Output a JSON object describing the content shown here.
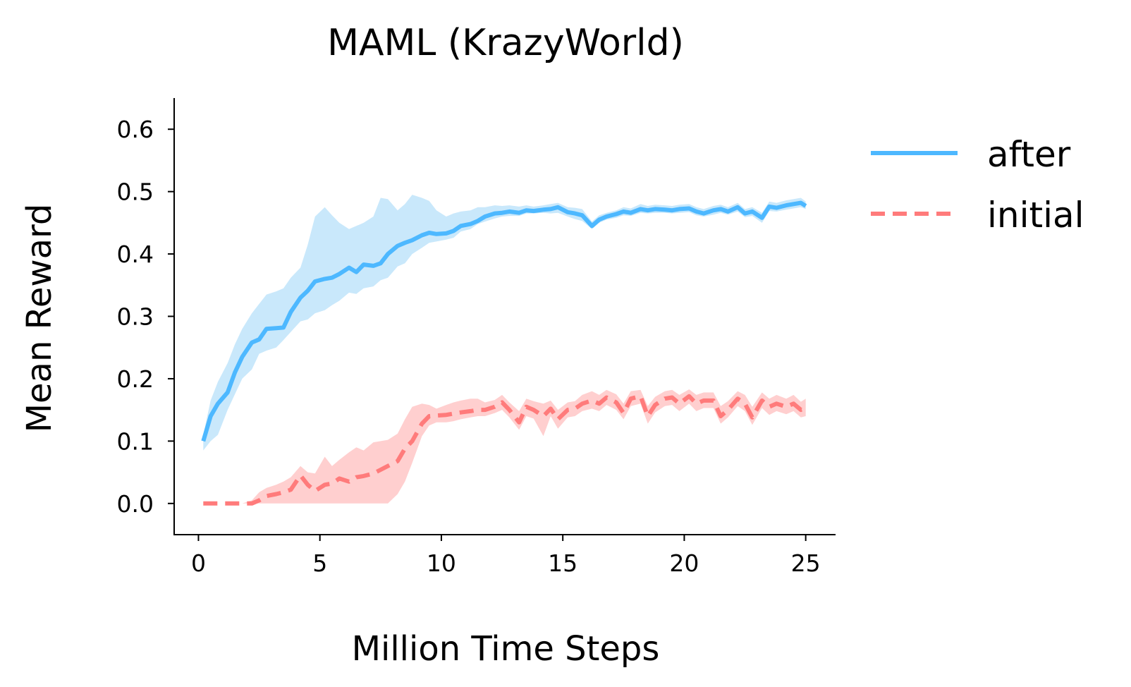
{
  "chart_data": {
    "type": "line",
    "title": "MAML (KrazyWorld)",
    "xlabel": "Million Time Steps",
    "ylabel": "Mean Reward",
    "xlim": [
      -1,
      26.2
    ],
    "ylim": [
      -0.05,
      0.65
    ],
    "xticks": [
      0,
      5,
      10,
      15,
      20,
      25
    ],
    "xtick_labels": [
      "0",
      "5",
      "10",
      "15",
      "20",
      "25"
    ],
    "yticks": [
      0.0,
      0.1,
      0.2,
      0.3,
      0.4,
      0.5,
      0.6
    ],
    "ytick_labels": [
      "0.0",
      "0.1",
      "0.2",
      "0.3",
      "0.4",
      "0.5",
      "0.6"
    ],
    "grid": false,
    "legend_position": "outside-top-right",
    "series": [
      {
        "name": "after",
        "color": "#4db8ff",
        "band_color": "#c9e8fb",
        "line_style": "solid",
        "x": [
          0.2,
          0.5,
          0.8,
          1.2,
          1.5,
          1.8,
          2.2,
          2.5,
          2.8,
          3.2,
          3.5,
          3.8,
          4.2,
          4.5,
          4.8,
          5.2,
          5.5,
          5.8,
          6.2,
          6.5,
          6.8,
          7.2,
          7.5,
          7.8,
          8.2,
          8.5,
          8.8,
          9.2,
          9.5,
          9.8,
          10.2,
          10.5,
          10.8,
          11.2,
          11.5,
          11.8,
          12.2,
          12.5,
          12.8,
          13.2,
          13.5,
          13.8,
          14.2,
          14.5,
          14.8,
          15.2,
          15.5,
          15.8,
          16.2,
          16.5,
          16.8,
          17.2,
          17.5,
          17.8,
          18.2,
          18.5,
          18.8,
          19.2,
          19.5,
          19.8,
          20.2,
          20.5,
          20.8,
          21.2,
          21.5,
          21.8,
          22.2,
          22.5,
          22.8,
          23.2,
          23.5,
          23.8,
          24.2,
          24.5,
          24.8,
          25.0
        ],
        "y": [
          0.1,
          0.14,
          0.16,
          0.178,
          0.21,
          0.235,
          0.258,
          0.263,
          0.28,
          0.281,
          0.282,
          0.307,
          0.33,
          0.341,
          0.356,
          0.36,
          0.362,
          0.368,
          0.378,
          0.371,
          0.383,
          0.381,
          0.385,
          0.4,
          0.413,
          0.418,
          0.422,
          0.43,
          0.434,
          0.432,
          0.433,
          0.437,
          0.445,
          0.448,
          0.453,
          0.46,
          0.465,
          0.466,
          0.468,
          0.466,
          0.47,
          0.469,
          0.471,
          0.472,
          0.475,
          0.467,
          0.465,
          0.462,
          0.445,
          0.455,
          0.46,
          0.464,
          0.468,
          0.466,
          0.472,
          0.47,
          0.472,
          0.471,
          0.47,
          0.472,
          0.473,
          0.468,
          0.465,
          0.47,
          0.472,
          0.468,
          0.475,
          0.465,
          0.468,
          0.458,
          0.476,
          0.474,
          0.478,
          0.48,
          0.482,
          0.477
        ],
        "lower": [
          0.085,
          0.1,
          0.11,
          0.15,
          0.175,
          0.2,
          0.215,
          0.24,
          0.245,
          0.25,
          0.262,
          0.275,
          0.292,
          0.295,
          0.305,
          0.31,
          0.318,
          0.325,
          0.338,
          0.336,
          0.345,
          0.348,
          0.358,
          0.362,
          0.38,
          0.385,
          0.4,
          0.41,
          0.418,
          0.42,
          0.423,
          0.426,
          0.436,
          0.44,
          0.448,
          0.452,
          0.457,
          0.46,
          0.461,
          0.461,
          0.465,
          0.465,
          0.466,
          0.465,
          0.466,
          0.46,
          0.456,
          0.453,
          0.44,
          0.45,
          0.455,
          0.458,
          0.462,
          0.461,
          0.466,
          0.465,
          0.466,
          0.466,
          0.465,
          0.466,
          0.467,
          0.462,
          0.46,
          0.463,
          0.466,
          0.463,
          0.468,
          0.459,
          0.461,
          0.45,
          0.469,
          0.468,
          0.471,
          0.473,
          0.475,
          0.472
        ],
        "upper": [
          0.11,
          0.165,
          0.195,
          0.225,
          0.255,
          0.28,
          0.305,
          0.32,
          0.335,
          0.34,
          0.345,
          0.362,
          0.378,
          0.415,
          0.46,
          0.475,
          0.462,
          0.45,
          0.44,
          0.445,
          0.45,
          0.46,
          0.49,
          0.488,
          0.47,
          0.48,
          0.495,
          0.49,
          0.485,
          0.47,
          0.46,
          0.465,
          0.468,
          0.47,
          0.475,
          0.475,
          0.478,
          0.477,
          0.478,
          0.476,
          0.478,
          0.476,
          0.478,
          0.48,
          0.482,
          0.475,
          0.474,
          0.472,
          0.452,
          0.462,
          0.466,
          0.47,
          0.475,
          0.473,
          0.48,
          0.477,
          0.479,
          0.478,
          0.477,
          0.479,
          0.48,
          0.475,
          0.472,
          0.477,
          0.479,
          0.475,
          0.482,
          0.472,
          0.475,
          0.466,
          0.484,
          0.482,
          0.486,
          0.488,
          0.49,
          0.484
        ]
      },
      {
        "name": "initial",
        "color": "#ff7b7b",
        "band_color": "#ffcfcf",
        "line_style": "dashed",
        "x": [
          0.2,
          0.5,
          0.8,
          1.2,
          1.5,
          1.8,
          2.2,
          2.5,
          2.8,
          3.2,
          3.5,
          3.8,
          4.2,
          4.5,
          4.8,
          5.2,
          5.5,
          5.8,
          6.2,
          6.5,
          6.8,
          7.2,
          7.5,
          7.8,
          8.2,
          8.5,
          8.8,
          9.2,
          9.5,
          9.8,
          10.2,
          10.5,
          10.8,
          11.2,
          11.5,
          11.8,
          12.2,
          12.5,
          12.8,
          13.2,
          13.5,
          13.8,
          14.2,
          14.5,
          14.8,
          15.2,
          15.5,
          15.8,
          16.2,
          16.5,
          16.8,
          17.2,
          17.5,
          17.8,
          18.2,
          18.5,
          18.8,
          19.2,
          19.5,
          19.8,
          20.2,
          20.5,
          20.8,
          21.2,
          21.5,
          21.8,
          22.2,
          22.5,
          22.8,
          23.2,
          23.5,
          23.8,
          24.2,
          24.5,
          24.8,
          25.0
        ],
        "y": [
          0.0,
          0.0,
          0.0,
          0.0,
          0.0,
          0.0,
          0.0,
          0.005,
          0.012,
          0.015,
          0.018,
          0.022,
          0.045,
          0.03,
          0.02,
          0.03,
          0.032,
          0.04,
          0.035,
          0.042,
          0.044,
          0.048,
          0.054,
          0.06,
          0.068,
          0.088,
          0.1,
          0.128,
          0.14,
          0.141,
          0.142,
          0.144,
          0.146,
          0.148,
          0.15,
          0.15,
          0.155,
          0.162,
          0.15,
          0.13,
          0.155,
          0.15,
          0.14,
          0.152,
          0.135,
          0.15,
          0.152,
          0.16,
          0.165,
          0.16,
          0.17,
          0.162,
          0.145,
          0.168,
          0.172,
          0.14,
          0.158,
          0.168,
          0.17,
          0.16,
          0.172,
          0.16,
          0.165,
          0.165,
          0.14,
          0.15,
          0.168,
          0.16,
          0.138,
          0.165,
          0.155,
          0.16,
          0.155,
          0.16,
          0.15,
          0.152
        ],
        "lower": [
          0.0,
          0.0,
          0.0,
          0.0,
          0.0,
          0.0,
          0.0,
          0.0,
          0.0,
          0.0,
          0.0,
          0.0,
          0.0,
          0.0,
          0.0,
          0.0,
          0.0,
          0.0,
          0.0,
          0.0,
          0.0,
          0.0,
          0.0,
          0.0,
          0.015,
          0.035,
          0.065,
          0.108,
          0.125,
          0.13,
          0.13,
          0.132,
          0.135,
          0.138,
          0.14,
          0.14,
          0.145,
          0.15,
          0.138,
          0.118,
          0.14,
          0.136,
          0.108,
          0.14,
          0.12,
          0.138,
          0.14,
          0.148,
          0.152,
          0.148,
          0.158,
          0.15,
          0.135,
          0.156,
          0.16,
          0.128,
          0.146,
          0.156,
          0.158,
          0.148,
          0.16,
          0.148,
          0.153,
          0.153,
          0.128,
          0.138,
          0.156,
          0.148,
          0.126,
          0.153,
          0.142,
          0.148,
          0.143,
          0.148,
          0.138,
          0.14
        ],
        "upper": [
          0.0,
          0.0,
          0.0,
          0.0,
          0.0,
          0.0,
          0.005,
          0.018,
          0.025,
          0.03,
          0.035,
          0.042,
          0.06,
          0.05,
          0.048,
          0.075,
          0.06,
          0.07,
          0.082,
          0.09,
          0.085,
          0.098,
          0.1,
          0.102,
          0.112,
          0.135,
          0.155,
          0.16,
          0.158,
          0.152,
          0.158,
          0.162,
          0.165,
          0.168,
          0.168,
          0.162,
          0.166,
          0.174,
          0.162,
          0.148,
          0.168,
          0.164,
          0.16,
          0.165,
          0.15,
          0.162,
          0.164,
          0.174,
          0.18,
          0.174,
          0.182,
          0.175,
          0.16,
          0.18,
          0.182,
          0.156,
          0.171,
          0.18,
          0.182,
          0.174,
          0.183,
          0.174,
          0.178,
          0.178,
          0.156,
          0.164,
          0.18,
          0.174,
          0.155,
          0.178,
          0.168,
          0.174,
          0.168,
          0.174,
          0.163,
          0.168
        ]
      }
    ]
  }
}
